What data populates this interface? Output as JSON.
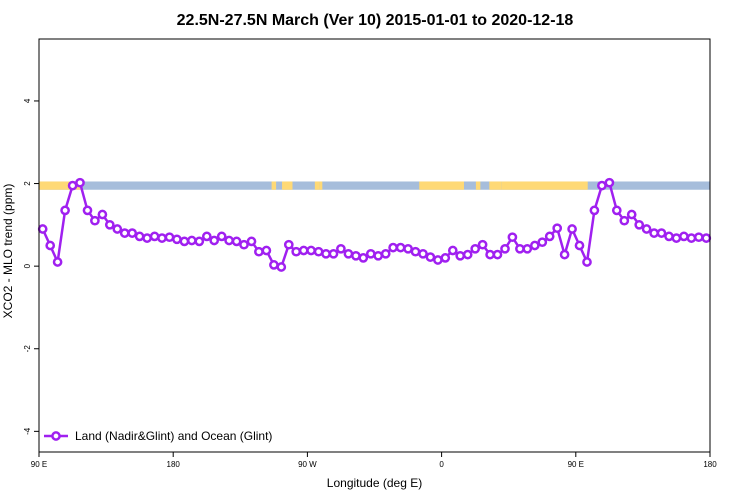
{
  "chart_data": {
    "type": "line",
    "title": "22.5N-27.5N March (Ver 10)   2015-01-01 to 2020-12-18",
    "xlabel": "Longitude (deg E)",
    "ylabel": "XCO2 - MLO trend (ppm)",
    "xlim": [
      90,
      540
    ],
    "ylim": [
      -4.5,
      5.5
    ],
    "x_ticks": [
      {
        "value": 90,
        "label": "90 E"
      },
      {
        "value": 180,
        "label": "180"
      },
      {
        "value": 270,
        "label": "90 W"
      },
      {
        "value": 360,
        "label": "0"
      },
      {
        "value": 450,
        "label": "90 E"
      },
      {
        "value": 540,
        "label": "180"
      }
    ],
    "y_ticks": [
      {
        "value": -4,
        "label": "-4"
      },
      {
        "value": -2,
        "label": "-2"
      },
      {
        "value": 0,
        "label": "0"
      },
      {
        "value": 2,
        "label": "2"
      },
      {
        "value": 4,
        "label": "4"
      }
    ],
    "grid": false,
    "legend_position": "bottom-left",
    "land_ocean_band": {
      "y_range": [
        1.85,
        2.05
      ],
      "ocean_color": "#a6bddb",
      "land_color": "#fed976",
      "land_segments": [
        [
          90,
          118
        ],
        [
          246,
          249
        ],
        [
          253,
          260
        ],
        [
          278,
          280
        ],
        [
          275,
          278
        ],
        [
          345,
          375
        ],
        [
          383,
          386
        ],
        [
          392,
          400
        ],
        [
          400,
          458
        ]
      ]
    },
    "series": [
      {
        "name": "Land (Nadir&Glint) and Ocean (Glint)",
        "color": "#a020f0",
        "x": [
          92.5,
          97.5,
          102.5,
          107.5,
          112.5,
          117.5,
          122.5,
          127.5,
          132.5,
          137.5,
          142.5,
          147.5,
          152.5,
          157.5,
          162.5,
          167.5,
          172.5,
          177.5,
          182.5,
          187.5,
          192.5,
          197.5,
          202.5,
          207.5,
          212.5,
          217.5,
          222.5,
          227.5,
          232.5,
          237.5,
          242.5,
          247.5,
          252.5,
          257.5,
          262.5,
          267.5,
          272.5,
          277.5,
          282.5,
          287.5,
          292.5,
          297.5,
          302.5,
          307.5,
          312.5,
          317.5,
          322.5,
          327.5,
          332.5,
          337.5,
          342.5,
          347.5,
          352.5,
          357.5,
          362.5,
          367.5,
          372.5,
          377.5,
          382.5,
          387.5,
          392.5,
          397.5,
          402.5,
          407.5,
          412.5,
          417.5,
          422.5,
          427.5,
          432.5,
          437.5,
          442.5,
          447.5,
          452.5,
          457.5,
          462.5,
          467.5,
          472.5,
          477.5,
          482.5,
          487.5,
          492.5,
          497.5,
          502.5,
          507.5,
          512.5,
          517.5,
          522.5,
          527.5,
          532.5,
          537.5
        ],
        "values": [
          0.9,
          0.5,
          0.1,
          1.35,
          1.95,
          2.02,
          1.35,
          1.1,
          1.25,
          1.0,
          0.9,
          0.8,
          0.8,
          0.72,
          0.68,
          0.72,
          0.68,
          0.7,
          0.65,
          0.6,
          0.62,
          0.6,
          0.72,
          0.62,
          0.72,
          0.62,
          0.6,
          0.52,
          0.6,
          0.35,
          0.38,
          0.03,
          -0.02,
          0.52,
          0.35,
          0.38,
          0.38,
          0.35,
          0.3,
          0.3,
          0.42,
          0.3,
          0.25,
          0.2,
          0.3,
          0.25,
          0.3,
          0.45,
          0.45,
          0.42,
          0.35,
          0.3,
          0.22,
          0.15,
          0.2,
          0.38,
          0.25,
          0.28,
          0.42,
          0.52,
          0.28,
          0.28,
          0.42,
          0.7,
          0.42,
          0.42,
          0.5,
          0.58,
          0.72,
          0.92,
          0.28,
          0.9,
          0.5,
          0.1,
          1.35,
          1.95,
          2.02,
          1.35,
          1.1,
          1.25,
          1.0,
          0.9,
          0.8,
          0.8,
          0.72,
          0.68,
          0.72,
          0.68,
          0.7,
          0.68
        ]
      }
    ]
  }
}
